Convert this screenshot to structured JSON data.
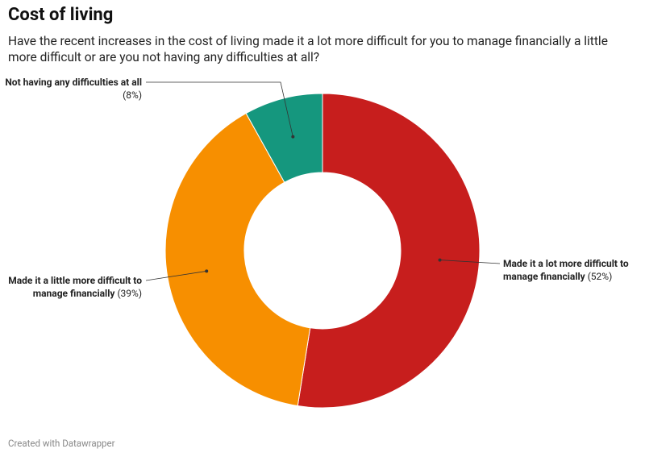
{
  "chart_data": {
    "type": "donut",
    "title": "Cost of living",
    "subtitle": "Have the recent increases in the cost of living made it a lot more difficult for you to manage financially a little more difficult or are you not having any difficulties at all?",
    "categories": [
      "Made it a lot more difficult to manage financially",
      "Made it a little more difficult to manage financially",
      "Not having any difficulties at all"
    ],
    "values": [
      52,
      39,
      8
    ],
    "value_labels": [
      "(52%)",
      "(39%)",
      "(8%)"
    ],
    "colors": [
      "#c71e1d",
      "#f78f00",
      "#15977e"
    ],
    "footer": "Created with Datawrapper"
  }
}
